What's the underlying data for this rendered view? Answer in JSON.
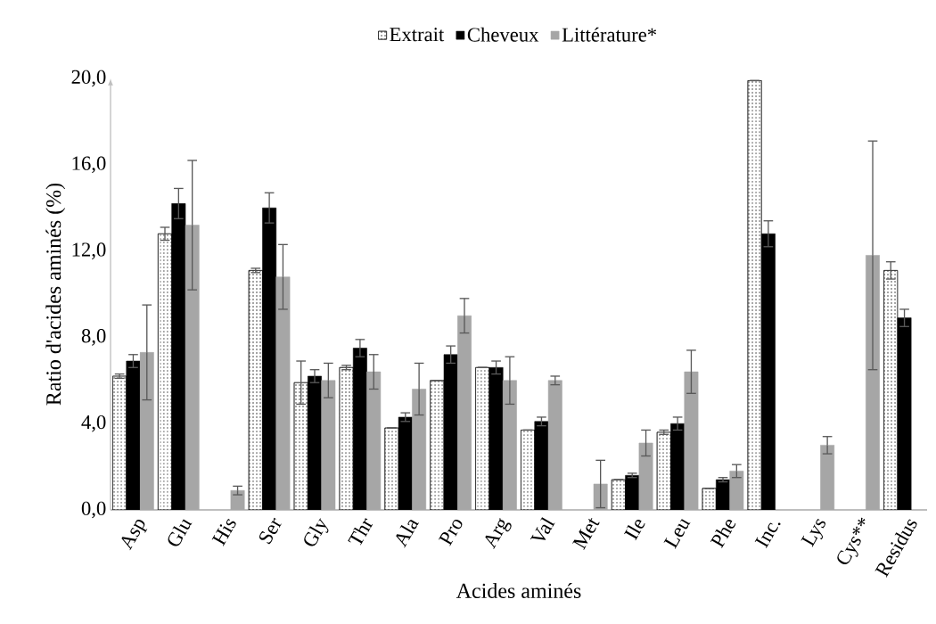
{
  "chart_data": {
    "type": "bar",
    "xlabel": "Acides aminés",
    "ylabel": "Ratio d'acides aminés (%)",
    "categories": [
      "Asp",
      "Glu",
      "His",
      "Ser",
      "Gly",
      "Thr",
      "Ala",
      "Pro",
      "Arg",
      "Val",
      "Met",
      "Ile",
      "Leu",
      "Phe",
      "Inc.",
      "Lys",
      "Cys**",
      "Residus"
    ],
    "series": [
      {
        "name": "Extrait",
        "color": "#ffffff",
        "values": [
          6.2,
          12.8,
          null,
          11.1,
          5.9,
          6.6,
          3.8,
          6.0,
          6.6,
          3.7,
          null,
          1.4,
          3.6,
          1.0,
          19.9,
          null,
          null,
          11.1
        ],
        "errors": [
          0.1,
          0.3,
          null,
          0.1,
          1.0,
          0.1,
          null,
          null,
          null,
          null,
          null,
          null,
          0.1,
          null,
          null,
          null,
          null,
          0.4
        ]
      },
      {
        "name": "Cheveux",
        "color": "#000000",
        "values": [
          6.9,
          14.2,
          null,
          14.0,
          6.2,
          7.5,
          4.3,
          7.2,
          6.6,
          4.1,
          null,
          1.6,
          4.0,
          1.4,
          12.8,
          null,
          null,
          8.9
        ],
        "errors": [
          0.3,
          0.7,
          null,
          0.7,
          0.3,
          0.4,
          0.2,
          0.4,
          0.3,
          0.2,
          null,
          0.1,
          0.3,
          0.1,
          0.6,
          null,
          null,
          0.4
        ]
      },
      {
        "name": "Littérature*",
        "color": "#a6a6a6",
        "values": [
          7.3,
          13.2,
          0.9,
          10.8,
          6.0,
          6.4,
          5.6,
          9.0,
          6.0,
          6.0,
          1.2,
          3.1,
          6.4,
          1.8,
          null,
          3.0,
          11.8,
          null
        ],
        "errors": [
          2.2,
          3.0,
          0.2,
          1.5,
          0.8,
          0.8,
          1.2,
          0.8,
          1.1,
          0.2,
          1.1,
          0.6,
          1.0,
          0.3,
          null,
          0.4,
          5.3,
          null
        ]
      }
    ],
    "ylim": [
      0,
      20
    ],
    "yticks": [
      {
        "value": 0,
        "label": "0,0"
      },
      {
        "value": 4,
        "label": "4,0"
      },
      {
        "value": 8,
        "label": "8,0"
      },
      {
        "value": 12,
        "label": "12,0"
      },
      {
        "value": 16,
        "label": "16,0"
      },
      {
        "value": 20,
        "label": "20,0"
      }
    ],
    "legend": "top",
    "grid": false
  }
}
